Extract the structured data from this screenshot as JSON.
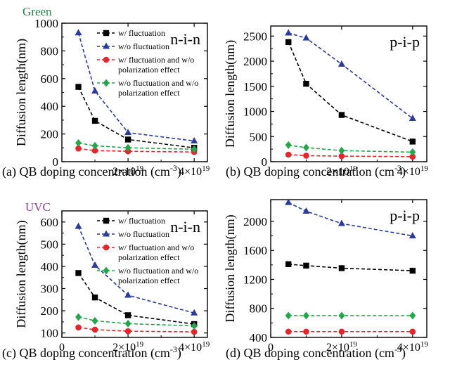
{
  "annotations": {
    "green": "Green",
    "uvc": "UVC"
  },
  "colors": {
    "w_fluctuation": "#000000",
    "wo_fluctuation": "#2b3a9e",
    "w_fluct_wo_pol": "#e8242a",
    "wo_fluct_wo_pol": "#22a84a"
  },
  "chart_data": [
    {
      "id": "a",
      "type": "line",
      "corner_label": "n-i-n",
      "caption": "(a) QB doping concentration (cm",
      "caption_sup": "-3",
      "caption_end": ")",
      "ylabel": "Diffusion length(nm)",
      "xlim": [
        0,
        4.4
      ],
      "ylim": [
        0,
        1000
      ],
      "yticks": [
        0,
        200,
        400,
        600,
        800,
        1000
      ],
      "ytick_labels": [
        "0",
        "200",
        "400",
        "600",
        "800",
        "1000"
      ],
      "xticks": [
        2,
        4
      ],
      "xtick_base": "×10",
      "xtick_exp": "19",
      "x": [
        0.5,
        1,
        2,
        4
      ],
      "legend": true,
      "series": [
        {
          "name": "w/ fluctuation",
          "marker": "square",
          "values": [
            540,
            295,
            160,
            100
          ]
        },
        {
          "name": "w/o fluctuation",
          "marker": "triangle",
          "values": [
            930,
            510,
            210,
            150
          ]
        },
        {
          "name": "w/ fluctuation and w/o polarization effect",
          "name_lines": [
            "w/ fluctuation and w/o",
            "polarization effect"
          ],
          "marker": "circle",
          "values": [
            95,
            80,
            75,
            70
          ]
        },
        {
          "name": "w/o fluctuation and w/o polarization effect",
          "name_lines": [
            "w/o fluctuation and w/o",
            "polarization effect"
          ],
          "marker": "diamond",
          "values": [
            135,
            115,
            100,
            90
          ]
        }
      ]
    },
    {
      "id": "b",
      "type": "line",
      "corner_label": "p-i-p",
      "caption": "(b) QB doping concentration (cm",
      "caption_sup": "-3",
      "caption_end": ")",
      "ylabel": "Diffusion length(nm)",
      "xlim": [
        0,
        4.4
      ],
      "ylim": [
        0,
        2700
      ],
      "yticks": [
        0,
        500,
        1000,
        1500,
        2000,
        2500
      ],
      "ytick_labels": [
        "0",
        "500",
        "1000",
        "1500",
        "2000",
        "2500"
      ],
      "xticks": [
        2,
        4
      ],
      "xtick_base": "×10",
      "xtick_exp": "19",
      "x": [
        0.5,
        1,
        2,
        4
      ],
      "legend": false,
      "series": [
        {
          "name": "w/ fluctuation",
          "marker": "square",
          "values": [
            2380,
            1550,
            930,
            400
          ]
        },
        {
          "name": "w/o fluctuation",
          "marker": "triangle",
          "values": [
            2560,
            2460,
            1940,
            860
          ]
        },
        {
          "name": "w/ fluctuation and w/o polarization effect",
          "marker": "circle",
          "values": [
            140,
            120,
            110,
            100
          ]
        },
        {
          "name": "w/o fluctuation and w/o polarization effect",
          "marker": "diamond",
          "values": [
            330,
            280,
            220,
            190
          ]
        }
      ]
    },
    {
      "id": "c",
      "type": "line",
      "corner_label": "n-i-n",
      "caption": "(c) QB doping concentration (cm",
      "caption_sup": "-3",
      "caption_end": ")",
      "ylabel": "Diffusion length(nm)",
      "xlim": [
        0,
        4.4
      ],
      "ylim": [
        80,
        650
      ],
      "yticks": [
        100,
        200,
        300,
        400,
        500,
        600
      ],
      "ytick_labels": [
        "100",
        "200",
        "300",
        "400",
        "500",
        "600"
      ],
      "xticks": [
        0,
        2,
        4
      ],
      "xtick_base": "×10",
      "xtick_exp": "19",
      "x": [
        0.5,
        1,
        2,
        4
      ],
      "legend": true,
      "series": [
        {
          "name": "w/ fluctuation",
          "marker": "square",
          "values": [
            370,
            260,
            180,
            140
          ]
        },
        {
          "name": "w/o fluctuation",
          "marker": "triangle",
          "values": [
            580,
            405,
            270,
            190
          ]
        },
        {
          "name": "w/ fluctuation and w/o polarization effect",
          "name_lines": [
            "w/ fluctuation and w/o",
            "polarization effect"
          ],
          "marker": "circle",
          "values": [
            125,
            115,
            108,
            105
          ]
        },
        {
          "name": "w/o fluctuation and w/o polarization effect",
          "name_lines": [
            "w/o fluctuation and w/o",
            "polarization effect"
          ],
          "marker": "diamond",
          "values": [
            172,
            155,
            142,
            132
          ]
        }
      ]
    },
    {
      "id": "d",
      "type": "line",
      "corner_label": "p-i-p",
      "caption": "(d) QB doping concentration (cm",
      "caption_sup": "-3",
      "caption_end": ")",
      "ylabel": "Diffusion length(nm)",
      "xlim": [
        0,
        4.4
      ],
      "ylim": [
        400,
        2300
      ],
      "yticks": [
        400,
        800,
        1200,
        1600,
        2000
      ],
      "ytick_labels": [
        "400",
        "800",
        "1200",
        "1600",
        "2000"
      ],
      "xticks": [
        0,
        2,
        4
      ],
      "xtick_base": "×10",
      "xtick_exp": "19",
      "x": [
        0.5,
        1,
        2,
        4
      ],
      "legend": false,
      "series": [
        {
          "name": "w/ fluctuation",
          "marker": "square",
          "values": [
            1410,
            1390,
            1355,
            1320
          ]
        },
        {
          "name": "w/o fluctuation",
          "marker": "triangle",
          "values": [
            2260,
            2140,
            1970,
            1800
          ]
        },
        {
          "name": "w/ fluctuation and w/o polarization effect",
          "marker": "circle",
          "values": [
            480,
            480,
            480,
            480
          ]
        },
        {
          "name": "w/o fluctuation and w/o polarization effect",
          "marker": "diamond",
          "values": [
            700,
            700,
            700,
            700
          ]
        }
      ]
    }
  ]
}
